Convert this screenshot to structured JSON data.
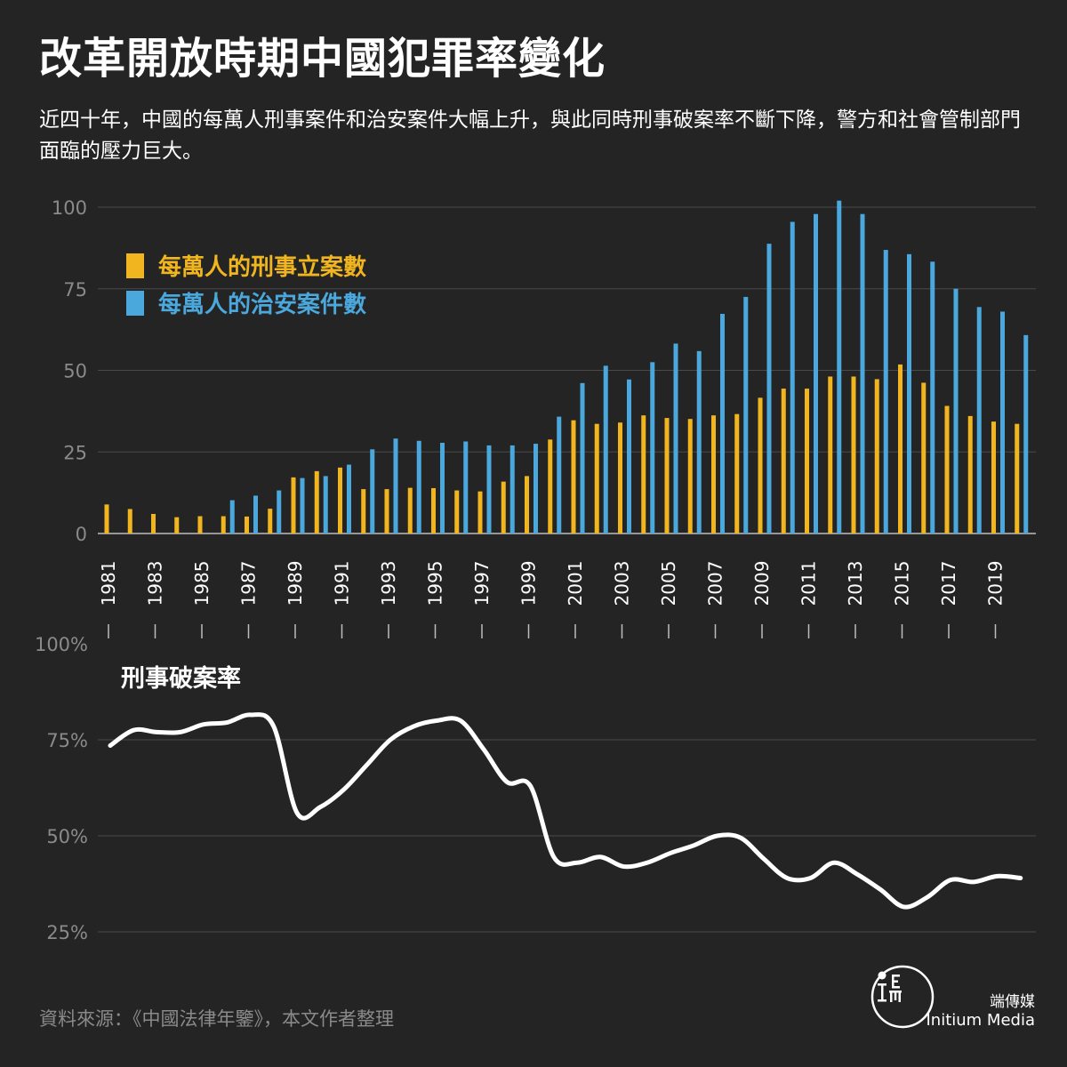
{
  "title": "改革開放時期中國犯罪率變化",
  "subtitle": "近四十年，中國的每萬人刑事案件和治安案件大幅上升，與此同時刑事破案率不斷下降，警方和社會管制部門面臨的壓力巨大。",
  "source": "資料來源：《中國法律年鑒》，本文作者整理",
  "brand": {
    "name_cn": "端傳媒",
    "name_en": "Initium Media",
    "logo_icon": "initium-logo-icon"
  },
  "colors": {
    "criminal": "#f0b51f",
    "public_security": "#4aa8dd",
    "line": "#ffffff",
    "background": "#242424",
    "grid": "#4a4a4a",
    "axis_text": "#8a8a8a"
  },
  "chart_data": [
    {
      "type": "bar",
      "legend_placement": "top-left",
      "ylim": [
        0,
        100
      ],
      "yticks": [
        0,
        25,
        50,
        75,
        100
      ],
      "xtick_labels": [
        "1981",
        "1983",
        "1985",
        "1987",
        "1989",
        "1991",
        "1993",
        "1995",
        "1997",
        "1999",
        "2001",
        "2003",
        "2005",
        "2007",
        "2009",
        "2011",
        "2013",
        "2015",
        "2017",
        "2019"
      ],
      "categories": [
        1981,
        1982,
        1983,
        1984,
        1985,
        1986,
        1987,
        1988,
        1989,
        1990,
        1991,
        1992,
        1993,
        1994,
        1995,
        1996,
        1997,
        1998,
        1999,
        2000,
        2001,
        2002,
        2003,
        2004,
        2005,
        2006,
        2007,
        2008,
        2009,
        2010,
        2011,
        2012,
        2013,
        2014,
        2015,
        2016,
        2017,
        2018,
        2019,
        2020
      ],
      "series": [
        {
          "name": "每萬人的刑事立案數",
          "values": [
            8.9,
            7.5,
            6.0,
            5.0,
            5.3,
            5.3,
            5.2,
            7.6,
            17.2,
            19.1,
            20.2,
            13.6,
            13.6,
            14.0,
            13.9,
            13.2,
            12.9,
            15.9,
            17.6,
            28.8,
            34.7,
            33.6,
            34.0,
            36.2,
            35.4,
            35.1,
            36.2,
            36.6,
            41.6,
            44.4,
            44.4,
            48.1,
            48.1,
            47.3,
            51.8,
            46.2,
            39.1,
            36.0,
            34.3,
            33.6
          ]
        },
        {
          "name": "每萬人的治安案件數",
          "values": [
            null,
            null,
            null,
            null,
            null,
            10.2,
            11.6,
            13.2,
            17.0,
            17.6,
            21.1,
            25.8,
            29.1,
            28.4,
            27.8,
            28.2,
            27.0,
            27.0,
            27.5,
            35.8,
            46.1,
            51.4,
            47.2,
            52.5,
            58.2,
            55.9,
            67.3,
            72.5,
            88.8,
            95.5,
            97.9,
            102.0,
            97.9,
            86.9,
            85.6,
            83.3,
            75.0,
            69.4,
            68.0,
            60.8
          ]
        }
      ]
    },
    {
      "type": "line",
      "title": "刑事破案率",
      "ylim": [
        25,
        100
      ],
      "yticks": [
        25,
        50,
        75,
        100
      ],
      "ytick_labels": [
        "25%",
        "50%",
        "75%",
        "100%"
      ],
      "x": [
        1981,
        1982,
        1983,
        1984,
        1985,
        1986,
        1987,
        1988,
        1989,
        1990,
        1991,
        1992,
        1993,
        1994,
        1995,
        1996,
        1997,
        1998,
        1999,
        2000,
        2001,
        2002,
        2003,
        2004,
        2005,
        2006,
        2007,
        2008,
        2009,
        2010,
        2011,
        2012,
        2013,
        2014,
        2015,
        2016,
        2017,
        2018,
        2019,
        2020
      ],
      "series": [
        {
          "values": [
            73.5,
            77.5,
            77.0,
            77.0,
            79.0,
            79.5,
            81.5,
            78.5,
            56.0,
            57.5,
            62.0,
            68.5,
            75.0,
            78.5,
            80.0,
            80.0,
            72.5,
            64.0,
            63.0,
            44.5,
            43.0,
            44.5,
            42.0,
            43.0,
            45.5,
            47.5,
            50.0,
            49.5,
            44.0,
            39.0,
            39.0,
            43.0,
            40.0,
            36.0,
            31.5,
            34.0,
            38.5,
            38.0,
            39.5,
            39.0
          ]
        }
      ]
    }
  ]
}
